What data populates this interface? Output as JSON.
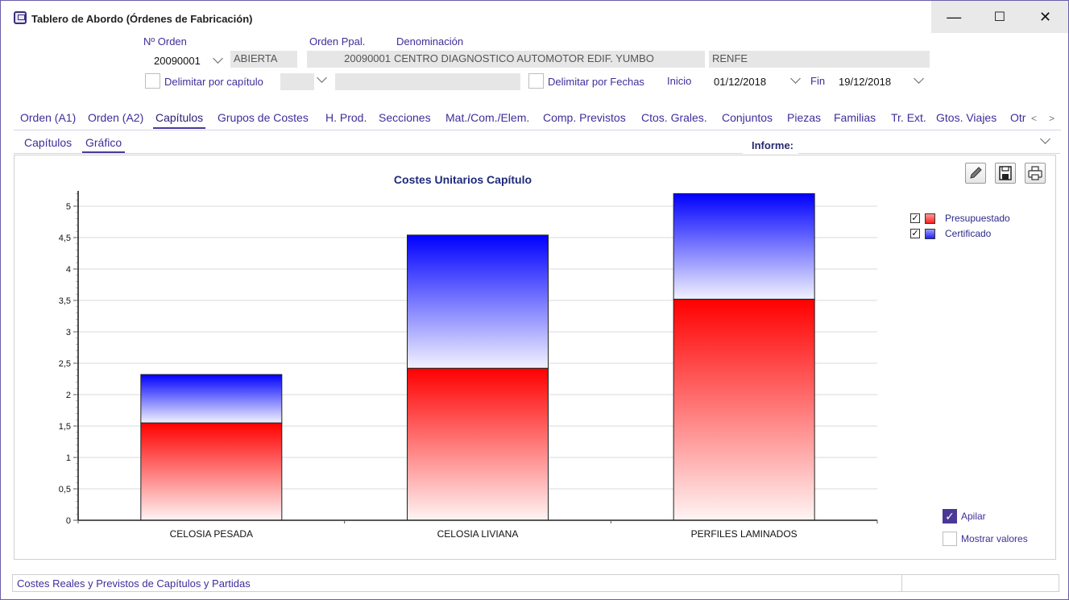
{
  "window": {
    "title": "Tablero de Abordo (Órdenes de Fabricación)",
    "controls": {
      "minimize": "—",
      "maximize": "☐",
      "close": "✕"
    }
  },
  "header": {
    "orden_label": "Nº Orden",
    "orden_value": "20090001",
    "estado_value": "ABIERTA",
    "orden_ppal_label": "Orden Ppal.",
    "orden_ppal_value": "20090001",
    "denominacion_label": "Denominación",
    "denominacion_value": "CENTRO DIAGNOSTICO AUTOMOTOR EDIF. YUMBO",
    "cliente_value": "RENFE",
    "delimitar_capitulo_label": "Delimitar por capítulo",
    "delimitar_fechas_label": "Delimitar por Fechas",
    "inicio_label": "Inicio",
    "inicio_value": "01/12/2018",
    "fin_label": "Fin",
    "fin_value": "19/12/2018"
  },
  "tabs": [
    {
      "label": "Orden (A1)",
      "active": false
    },
    {
      "label": "Orden (A2)",
      "active": false
    },
    {
      "label": "Capítulos",
      "active": true
    },
    {
      "label": "Grupos de Costes",
      "active": false
    },
    {
      "label": "H. Prod.",
      "active": false
    },
    {
      "label": "Secciones",
      "active": false
    },
    {
      "label": "Mat./Com./Elem.",
      "active": false
    },
    {
      "label": "Comp. Previstos",
      "active": false
    },
    {
      "label": "Ctos. Grales.",
      "active": false
    },
    {
      "label": "Conjuntos",
      "active": false
    },
    {
      "label": "Piezas",
      "active": false
    },
    {
      "label": "Familias",
      "active": false
    },
    {
      "label": "Tr. Ext.",
      "active": false
    },
    {
      "label": "Gtos. Viajes",
      "active": false
    },
    {
      "label": "Otr",
      "active": false
    }
  ],
  "tab_scroll": {
    "left": "<",
    "right": ">"
  },
  "subtabs": [
    {
      "label": "Capítulos",
      "active": false
    },
    {
      "label": "Gráfico",
      "active": true
    }
  ],
  "informe_label": "Informe:",
  "chart_data": {
    "type": "bar",
    "stacked": true,
    "title": "Costes Unitarios Capítulo",
    "categories": [
      "CELOSIA PESADA",
      "CELOSIA LIVIANA",
      "PERFILES LAMINADOS"
    ],
    "series": [
      {
        "name": "Presupuestado",
        "values": [
          1.55,
          2.42,
          3.52
        ],
        "color": "#ff0000"
      },
      {
        "name": "Certificado",
        "values": [
          0.77,
          2.12,
          1.68
        ],
        "color": "#0000ff"
      }
    ],
    "yticks": [
      "0",
      "0,5",
      "1",
      "1,5",
      "2",
      "2,5",
      "3",
      "3,5",
      "4",
      "4,5",
      "5"
    ],
    "ylim": [
      0,
      5.25
    ],
    "grid": true,
    "legend_position": "right"
  },
  "options": {
    "apilar_label": "Apilar",
    "apilar_checked": true,
    "mostrar_valores_label": "Mostrar valores",
    "mostrar_valores_checked": false
  },
  "status": {
    "text": "Costes Reales y Previstos de Capítulos y Partidas"
  }
}
